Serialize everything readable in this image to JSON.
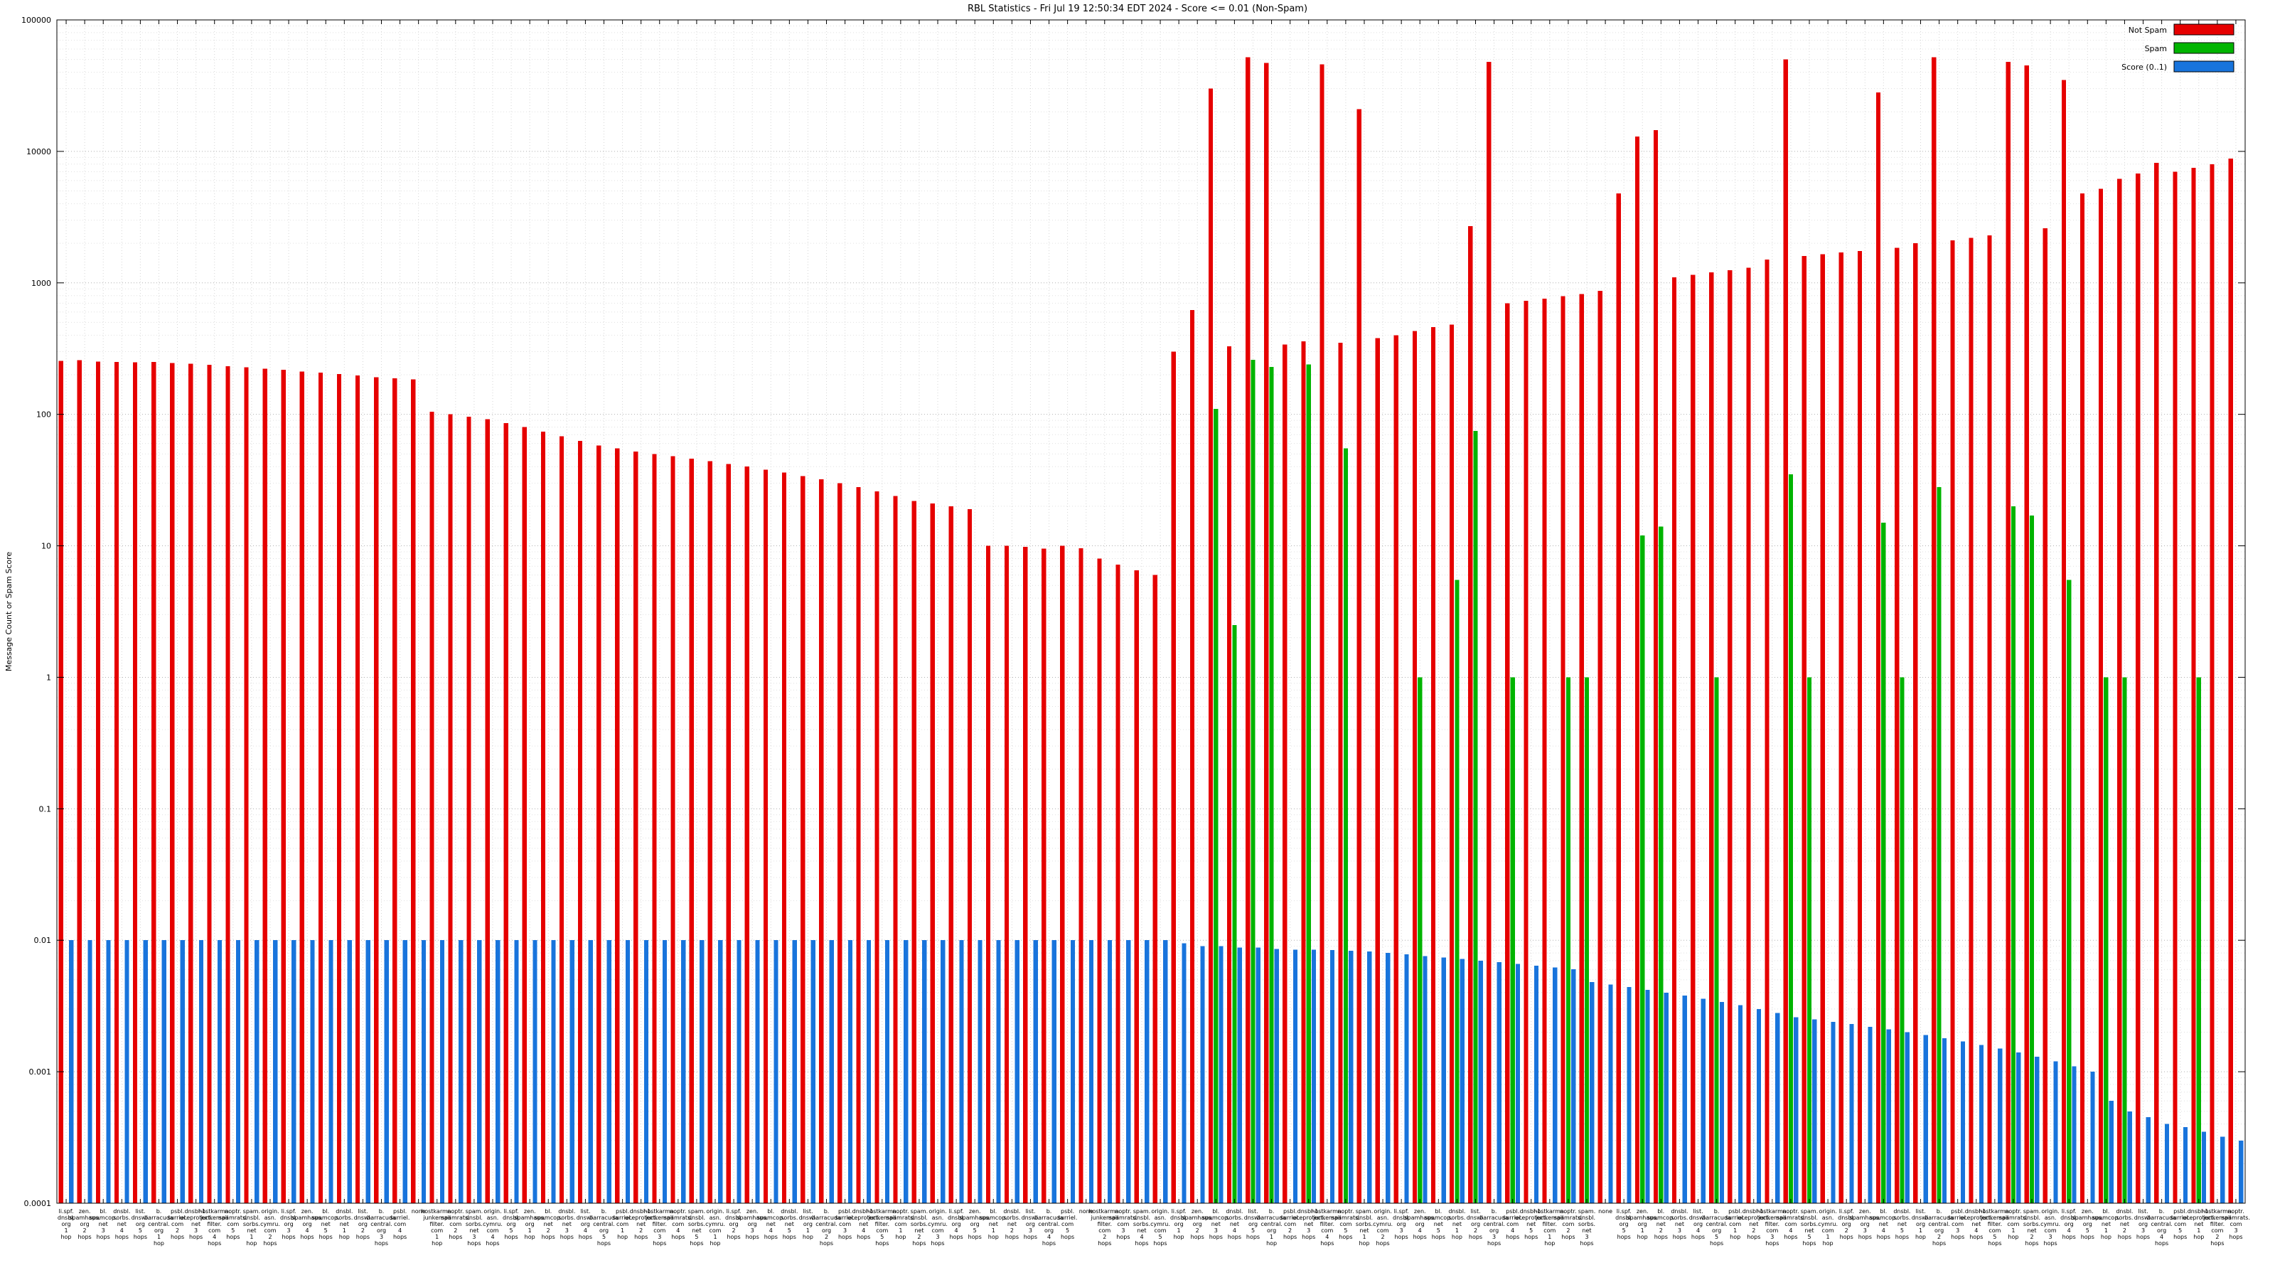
{
  "window": {
    "title": "RBL Statistics"
  },
  "chart_data": {
    "type": "bar",
    "scale": "log",
    "title": "RBL Statistics - Fri Jul 19 12:50:34 EDT 2024 - Score <= 0.01 (Non-Spam)",
    "ylabel": "Message Count or Spam Score",
    "xlabel": "",
    "ylim": [
      0.0001,
      100000
    ],
    "yticks": [
      "100000",
      "10000",
      "1000",
      "100",
      "10",
      "1",
      "0.1",
      "0.01",
      "0.001",
      "0.0001"
    ],
    "grid": true,
    "legend_position": "top-right",
    "background": "#ffffff",
    "categories": [
      "li.spf. dnsbl. org 1 hop",
      "zen. spamhaus. org 2 hops",
      "bl. spamcop. net 3 hops",
      "dnsbl. sorbs. net 4 hops",
      "list. dnswl. org 5 hops",
      "b. barracuda central. org 1 hop",
      "psbl. surriel. com 2 hops",
      "dnsbl-1. uceprotect. net 3 hops",
      "hostkarma. junkemail filter. com 4 hops",
      "noptr. spamrats. com 5 hops",
      "spam. dnsbl. sorbs. net 1 hop",
      "origin. asn. cymru. com 2 hops",
      "li.spf. dnsbl. org 3 hops",
      "zen. spamhaus. org 4 hops",
      "bl. spamcop. net 5 hops",
      "dnsbl. sorbs. net 1 hop",
      "list. dnswl. org 2 hops",
      "b. barracuda central. org 3 hops",
      "psbl. surriel. com 4 hops",
      "none",
      "hostkarma. junkemail filter. com 1 hop",
      "noptr. spamrats. com 2 hops",
      "spam. dnsbl. sorbs. net 3 hops",
      "origin. asn. cymru. com 4 hops",
      "li.spf. dnsbl. org 5 hops",
      "zen. spamhaus. org 1 hop",
      "bl. spamcop. net 2 hops",
      "dnsbl. sorbs. net 3 hops",
      "list. dnswl. org 4 hops",
      "b. barracuda central. org 5 hops",
      "psbl. surriel. com 1 hop",
      "dnsbl-1. uceprotect. net 2 hops",
      "hostkarma. junkemail filter. com 3 hops",
      "noptr. spamrats. com 4 hops",
      "spam. dnsbl. sorbs. net 5 hops",
      "origin. asn. cymru. com 1 hop",
      "li.spf. dnsbl. org 2 hops",
      "zen. spamhaus. org 3 hops",
      "bl. spamcop. net 4 hops",
      "dnsbl. sorbs. net 5 hops",
      "list. dnswl. org 1 hop",
      "b. barracuda central. org 2 hops",
      "psbl. surriel. com 3 hops",
      "dnsbl-1. uceprotect. net 4 hops",
      "hostkarma. junkemail filter. com 5 hops",
      "noptr. spamrats. com 1 hop",
      "spam. dnsbl. sorbs. net 2 hops",
      "origin. asn. cymru. com 3 hops",
      "li.spf. dnsbl. org 4 hops",
      "zen. spamhaus. org 5 hops",
      "bl. spamcop. net 1 hop",
      "dnsbl. sorbs. net 2 hops",
      "list. dnswl. org 3 hops",
      "b. barracuda central. org 4 hops",
      "psbl. surriel. com 5 hops",
      "none",
      "hostkarma. junkemail filter. com 2 hops",
      "noptr. spamrats. com 3 hops",
      "spam. dnsbl. sorbs. net 4 hops",
      "origin. asn. cymru. com 5 hops",
      "li.spf. dnsbl. org 1 hop",
      "zen. spamhaus. org 2 hops",
      "bl. spamcop. net 3 hops",
      "dnsbl. sorbs. net 4 hops",
      "list. dnswl. org 5 hops",
      "b. barracuda central. org 1 hop",
      "psbl. surriel. com 2 hops",
      "dnsbl-1. uceprotect. net 3 hops",
      "hostkarma. junkemail filter. com 4 hops",
      "noptr. spamrats. com 5 hops",
      "spam. dnsbl. sorbs. net 1 hop",
      "origin. asn. cymru. com 2 hops",
      "li.spf. dnsbl. org 3 hops",
      "zen. spamhaus. org 4 hops",
      "bl. spamcop. net 5 hops",
      "dnsbl. sorbs. net 1 hop",
      "list. dnswl. org 2 hops",
      "b. barracuda central. org 3 hops",
      "psbl. surriel. com 4 hops",
      "dnsbl-1. uceprotect. net 5 hops",
      "hostkarma. junkemail filter. com 1 hop",
      "noptr. spamrats. com 2 hops",
      "spam. dnsbl. sorbs. net 3 hops",
      "none",
      "li.spf. dnsbl. org 5 hops",
      "zen. spamhaus. org 1 hop",
      "bl. spamcop. net 2 hops",
      "dnsbl. sorbs. net 3 hops",
      "list. dnswl. org 4 hops",
      "b. barracuda central. org 5 hops",
      "psbl. surriel. com 1 hop",
      "dnsbl-1. uceprotect. net 2 hops",
      "hostkarma. junkemail filter. com 3 hops",
      "noptr. spamrats. com 4 hops",
      "spam. dnsbl. sorbs. net 5 hops",
      "origin. asn. cymru. com 1 hop",
      "li.spf. dnsbl. org 2 hops",
      "zen. spamhaus. org 3 hops",
      "bl. spamcop. net 4 hops",
      "dnsbl. sorbs. net 5 hops",
      "list. dnswl. org 1 hop",
      "b. barracuda central. org 2 hops",
      "psbl. surriel. com 3 hops",
      "dnsbl-1. uceprotect. net 4 hops",
      "hostkarma. junkemail filter. com 5 hops",
      "noptr. spamrats. com 1 hop",
      "spam. dnsbl. sorbs. net 2 hops",
      "origin. asn. cymru. com 3 hops",
      "li.spf. dnsbl. org 4 hops",
      "zen. spamhaus. org 5 hops",
      "bl. spamcop. net 1 hop",
      "dnsbl. sorbs. net 2 hops",
      "list. dnswl. org 3 hops",
      "b. barracuda central. org 4 hops",
      "psbl. surriel. com 5 hops",
      "dnsbl-1. uceprotect. net 1 hop",
      "hostkarma. junkemail filter. com 2 hops",
      "noptr. spamrats. com 3 hops"
    ],
    "series": [
      {
        "name": "Not Spam",
        "color": "#e60000",
        "values": [
          255,
          258,
          252,
          250,
          248,
          250,
          245,
          242,
          238,
          232,
          228,
          222,
          218,
          212,
          208,
          202,
          198,
          192,
          188,
          184,
          105,
          100,
          96,
          92,
          86,
          80,
          74,
          68,
          63,
          58,
          55,
          52,
          50,
          48,
          46,
          44,
          42,
          40,
          38,
          36,
          34,
          32,
          30,
          28,
          26,
          24,
          22,
          21,
          20,
          19,
          10,
          10,
          9.8,
          9.5,
          10,
          9.6,
          8,
          7.2,
          6.5,
          6,
          300,
          620,
          30000,
          330,
          52000,
          47000,
          340,
          360,
          46000,
          350,
          21000,
          380,
          400,
          430,
          460,
          480,
          2700,
          48000,
          700,
          730,
          760,
          790,
          820,
          870,
          4800,
          13000,
          14500,
          1100,
          1150,
          1200,
          1250,
          1300,
          1500,
          50000,
          1600,
          1650,
          1700,
          1750,
          28000,
          1850,
          2000,
          52000,
          2100,
          2200,
          2300,
          48000,
          45000,
          2600,
          35000,
          4800,
          5200,
          6200,
          6800,
          8200,
          7000,
          7500,
          8000,
          8800
        ]
      },
      {
        "name": "Spam",
        "color": "#00b400",
        "values": [
          0,
          0,
          0,
          0,
          0,
          0,
          0,
          0,
          0,
          0,
          0,
          0,
          0,
          0,
          0,
          0,
          0,
          0,
          0,
          0,
          0,
          0,
          0,
          0,
          0,
          0,
          0,
          0,
          0,
          0,
          0,
          0,
          0,
          0,
          0,
          0,
          0,
          0,
          0,
          0,
          0,
          0,
          0,
          0,
          0,
          0,
          0,
          0,
          0,
          0,
          0,
          0,
          0,
          0,
          0,
          0,
          0,
          0,
          0,
          0,
          0,
          0,
          110,
          2.5,
          260,
          230,
          0,
          240,
          0,
          55,
          0,
          0,
          0,
          1,
          0,
          5.5,
          75,
          0,
          1,
          0,
          0,
          1,
          1,
          0,
          0,
          12,
          14,
          0,
          0,
          1,
          0,
          0,
          0,
          35,
          1,
          0,
          0,
          0,
          15,
          1,
          0,
          28,
          0,
          0,
          0,
          20,
          17,
          0,
          5.5,
          0,
          1,
          1,
          0,
          0,
          0,
          1,
          0,
          0
        ]
      },
      {
        "name": "Score (0..1)",
        "color": "#1874dc",
        "values": [
          0.01,
          0.01,
          0.01,
          0.01,
          0.01,
          0.01,
          0.01,
          0.01,
          0.01,
          0.01,
          0.01,
          0.01,
          0.01,
          0.01,
          0.01,
          0.01,
          0.01,
          0.01,
          0.01,
          0.01,
          0.01,
          0.01,
          0.01,
          0.01,
          0.01,
          0.01,
          0.01,
          0.01,
          0.01,
          0.01,
          0.01,
          0.01,
          0.01,
          0.01,
          0.01,
          0.01,
          0.01,
          0.01,
          0.01,
          0.01,
          0.01,
          0.01,
          0.01,
          0.01,
          0.01,
          0.01,
          0.01,
          0.01,
          0.01,
          0.01,
          0.01,
          0.01,
          0.01,
          0.01,
          0.01,
          0.01,
          0.01,
          0.01,
          0.01,
          0.01,
          0.0095,
          0.009,
          0.009,
          0.0088,
          0.0088,
          0.0086,
          0.0085,
          0.0085,
          0.0084,
          0.0083,
          0.0082,
          0.008,
          0.0078,
          0.0076,
          0.0074,
          0.0072,
          0.007,
          0.0068,
          0.0066,
          0.0064,
          0.0062,
          0.006,
          0.0048,
          0.0046,
          0.0044,
          0.0042,
          0.004,
          0.0038,
          0.0036,
          0.0034,
          0.0032,
          0.003,
          0.0028,
          0.0026,
          0.0025,
          0.0024,
          0.0023,
          0.0022,
          0.0021,
          0.002,
          0.0019,
          0.0018,
          0.0017,
          0.0016,
          0.0015,
          0.0014,
          0.0013,
          0.0012,
          0.0011,
          0.001,
          0.0006,
          0.0005,
          0.00045,
          0.0004,
          0.00038,
          0.00035,
          0.00032,
          0.0003
        ]
      }
    ]
  }
}
